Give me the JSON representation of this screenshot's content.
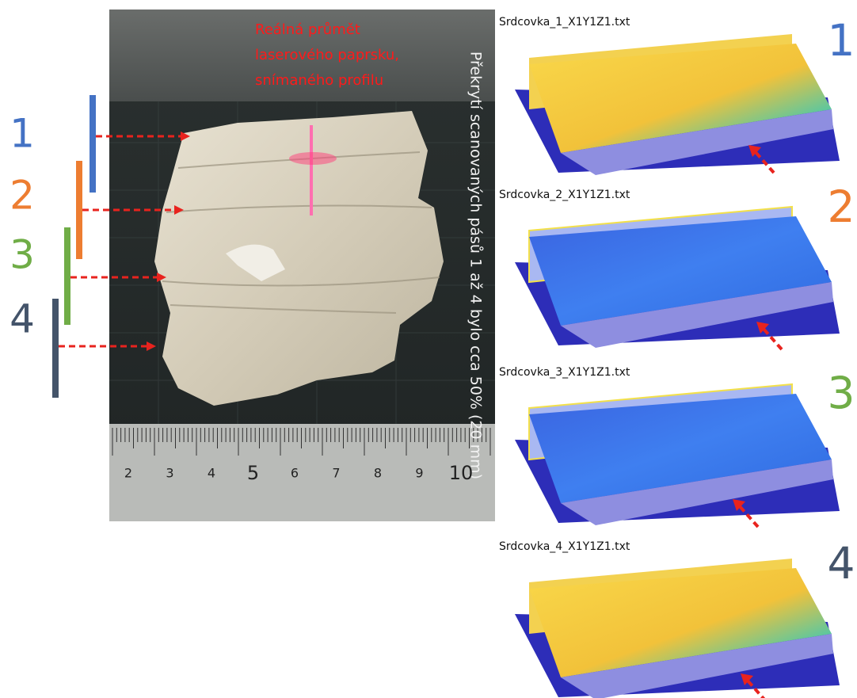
{
  "left_labels": [
    {
      "label": "1",
      "color": "#4472c4"
    },
    {
      "label": "2",
      "color": "#ed7d31"
    },
    {
      "label": "3",
      "color": "#70ad47"
    },
    {
      "label": "4",
      "color": "#44546a"
    }
  ],
  "photo": {
    "annotation_lines": [
      "Reálná průmět",
      "laserového paprsku,",
      "snímaného profilu"
    ],
    "vertical_note": "Překrytí scanovaných pásů 1 až 4 bylo cca 50% (20 mm)",
    "ruler_labels": [
      "2",
      "3",
      "4",
      "5",
      "6",
      "7",
      "8",
      "9",
      "10"
    ]
  },
  "scans": [
    {
      "title": "Srdcovka_1_X1Y1Z1.txt",
      "label": "1",
      "color": "#4472c4"
    },
    {
      "title": "Srdcovka_2_X1Y1Z1.txt",
      "label": "2",
      "color": "#ed7d31"
    },
    {
      "title": "Srdcovka_3_X1Y1Z1.txt",
      "label": "3",
      "color": "#70ad47"
    },
    {
      "title": "Srdcovka_4_X1Y1Z1.txt",
      "label": "4",
      "color": "#44546a"
    }
  ]
}
